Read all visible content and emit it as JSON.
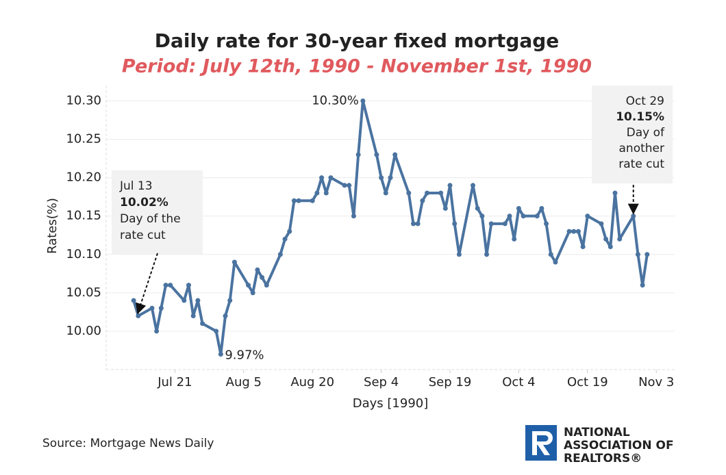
{
  "chart_data": {
    "type": "line",
    "title": "Daily rate for 30-year fixed mortgage",
    "subtitle": "Period: July 12th, 1990 - November 1st, 1990",
    "x_label": "Days [1990]",
    "y_label": "Rates(%)",
    "source": "Source: Mortgage News Daily",
    "logo": [
      "NATIONAL",
      "ASSOCIATION OF",
      "REALTORS®"
    ],
    "grid": true,
    "xlim": [
      "1990-07-06",
      "1990-11-07"
    ],
    "xticks": [
      {
        "value": "1990-07-21",
        "label": "Jul 21"
      },
      {
        "value": "1990-08-05",
        "label": "Aug 5"
      },
      {
        "value": "1990-08-20",
        "label": "Aug 20"
      },
      {
        "value": "1990-09-04",
        "label": "Sep 4"
      },
      {
        "value": "1990-09-19",
        "label": "Sep 19"
      },
      {
        "value": "1990-10-04",
        "label": "Oct 4"
      },
      {
        "value": "1990-10-19",
        "label": "Oct 19"
      },
      {
        "value": "1990-11-03",
        "label": "Nov 3"
      }
    ],
    "ylim": [
      9.95,
      10.32
    ],
    "yticks": [
      {
        "value": 10.0,
        "label": "10.00"
      },
      {
        "value": 10.05,
        "label": "10.05"
      },
      {
        "value": 10.1,
        "label": "10.10"
      },
      {
        "value": 10.15,
        "label": "10.15"
      },
      {
        "value": 10.2,
        "label": "10.20"
      },
      {
        "value": 10.25,
        "label": "10.25"
      },
      {
        "value": 10.3,
        "label": "10.30"
      }
    ],
    "x": [
      "1990-07-12",
      "1990-07-13",
      "1990-07-16",
      "1990-07-17",
      "1990-07-18",
      "1990-07-19",
      "1990-07-20",
      "1990-07-23",
      "1990-07-24",
      "1990-07-25",
      "1990-07-26",
      "1990-07-27",
      "1990-07-30",
      "1990-07-31",
      "1990-08-01",
      "1990-08-02",
      "1990-08-03",
      "1990-08-06",
      "1990-08-07",
      "1990-08-08",
      "1990-08-09",
      "1990-08-10",
      "1990-08-13",
      "1990-08-14",
      "1990-08-15",
      "1990-08-16",
      "1990-08-17",
      "1990-08-20",
      "1990-08-21",
      "1990-08-22",
      "1990-08-23",
      "1990-08-24",
      "1990-08-27",
      "1990-08-28",
      "1990-08-29",
      "1990-08-30",
      "1990-08-31",
      "1990-09-03",
      "1990-09-04",
      "1990-09-05",
      "1990-09-06",
      "1990-09-07",
      "1990-09-10",
      "1990-09-11",
      "1990-09-12",
      "1990-09-13",
      "1990-09-14",
      "1990-09-17",
      "1990-09-18",
      "1990-09-19",
      "1990-09-20",
      "1990-09-21",
      "1990-09-24",
      "1990-09-25",
      "1990-09-26",
      "1990-09-27",
      "1990-09-28",
      "1990-10-01",
      "1990-10-02",
      "1990-10-03",
      "1990-10-04",
      "1990-10-05",
      "1990-10-08",
      "1990-10-09",
      "1990-10-10",
      "1990-10-11",
      "1990-10-12",
      "1990-10-15",
      "1990-10-16",
      "1990-10-17",
      "1990-10-18",
      "1990-10-19",
      "1990-10-22",
      "1990-10-23",
      "1990-10-24",
      "1990-10-25",
      "1990-10-26",
      "1990-10-29",
      "1990-10-30",
      "1990-10-31",
      "1990-11-01"
    ],
    "series": [
      {
        "name": "Rate",
        "color": "#4a73a0",
        "values": [
          10.04,
          10.02,
          10.03,
          10.0,
          10.03,
          10.06,
          10.06,
          10.04,
          10.06,
          10.02,
          10.04,
          10.01,
          10.0,
          9.97,
          10.02,
          10.04,
          10.09,
          10.06,
          10.05,
          10.08,
          10.07,
          10.06,
          10.1,
          10.12,
          10.13,
          10.17,
          10.17,
          10.17,
          10.18,
          10.2,
          10.18,
          10.2,
          10.19,
          10.19,
          10.15,
          10.23,
          10.3,
          10.23,
          10.2,
          10.18,
          10.2,
          10.23,
          10.18,
          10.14,
          10.14,
          10.17,
          10.18,
          10.18,
          10.16,
          10.19,
          10.14,
          10.1,
          10.19,
          10.16,
          10.15,
          10.1,
          10.14,
          10.14,
          10.15,
          10.12,
          10.16,
          10.15,
          10.15,
          10.16,
          10.14,
          10.1,
          10.09,
          10.13,
          10.13,
          10.13,
          10.11,
          10.15,
          10.14,
          10.12,
          10.11,
          10.18,
          10.12,
          10.15,
          10.1,
          10.06,
          10.1
        ],
        "value_labels": [
          null,
          null,
          null,
          null,
          null,
          null,
          null,
          null,
          null,
          null,
          null,
          null,
          null,
          "9.97%",
          null,
          null,
          null,
          null,
          null,
          null,
          null,
          null,
          null,
          null,
          null,
          null,
          null,
          null,
          null,
          null,
          null,
          null,
          null,
          null,
          null,
          null,
          "10.30%",
          null,
          null,
          null,
          null,
          null,
          null,
          null,
          null,
          null,
          null,
          null,
          null,
          null,
          null,
          null,
          null,
          null,
          null,
          null,
          null,
          null,
          null,
          null,
          null,
          null,
          null,
          null,
          null,
          null,
          null,
          null,
          null,
          null,
          null,
          null,
          null,
          null,
          null,
          null,
          null,
          null,
          null,
          null,
          null
        ]
      }
    ],
    "annotations": [
      {
        "x": "1990-07-13",
        "value": 10.02,
        "date": "Jul 13",
        "label": "10.02%",
        "note": [
          "Day of the",
          "rate cut"
        ]
      },
      {
        "x": "1990-10-29",
        "value": 10.15,
        "date": "Oct 29",
        "label": "10.15%",
        "note": [
          "Day of",
          "another",
          "rate cut"
        ]
      }
    ]
  }
}
